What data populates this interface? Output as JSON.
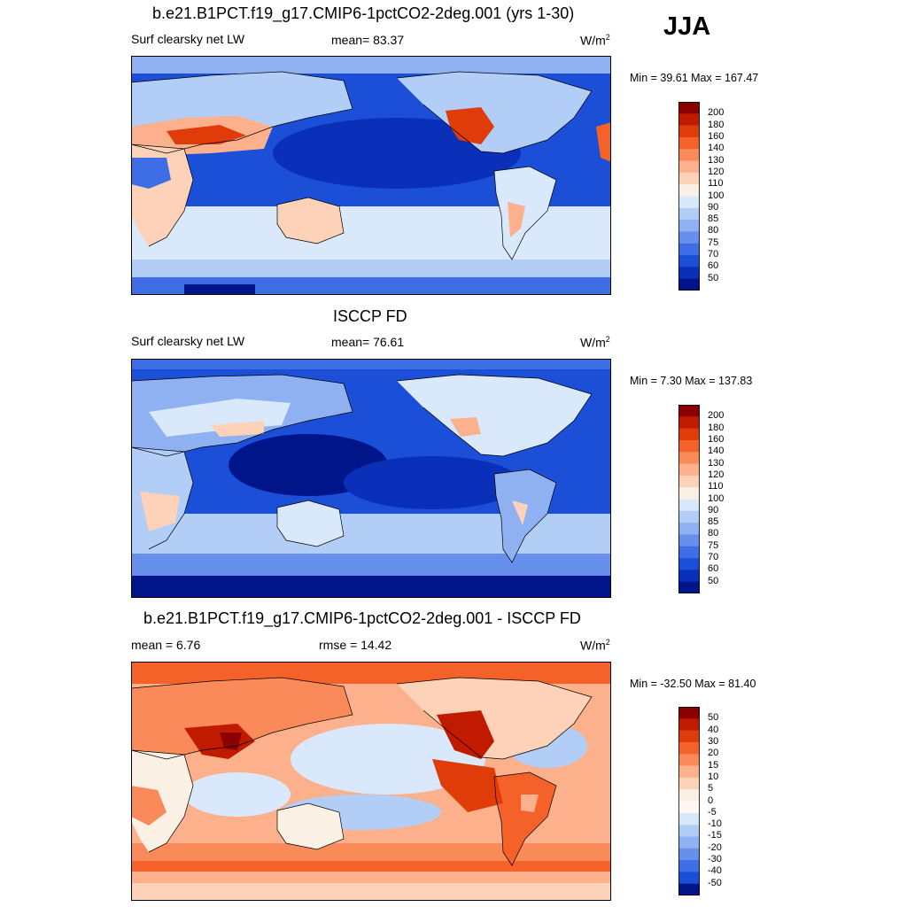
{
  "season": "JJA",
  "panels": [
    {
      "title": "b.e21.B1PCT.f19_g17.CMIP6-1pctCO2-2deg.001 (yrs 1-30)",
      "left_label": "Surf clearsky net LW",
      "center_label": "mean=  83.37",
      "units_base": "W/m",
      "units_exp": "2",
      "minmax": "Min =  39.61 Max = 167.47",
      "palette": "abs",
      "levels": [
        "200",
        "180",
        "160",
        "140",
        "130",
        "120",
        "110",
        "100",
        "90",
        "85",
        "80",
        "75",
        "70",
        "60",
        "50"
      ]
    },
    {
      "title": "ISCCP FD",
      "left_label": "Surf clearsky net LW",
      "center_label": "mean=  76.61",
      "units_base": "W/m",
      "units_exp": "2",
      "minmax": "Min =   7.30 Max = 137.83",
      "palette": "abs",
      "levels": [
        "200",
        "180",
        "160",
        "140",
        "130",
        "120",
        "110",
        "100",
        "90",
        "85",
        "80",
        "75",
        "70",
        "60",
        "50"
      ]
    },
    {
      "title": "b.e21.B1PCT.f19_g17.CMIP6-1pctCO2-2deg.001 - ISCCP FD",
      "left_label": "mean =   6.76",
      "center_label": "rmse =  14.42",
      "units_base": "W/m",
      "units_exp": "2",
      "minmax": "Min = -32.50 Max =  81.40",
      "palette": "diff",
      "levels": [
        "50",
        "40",
        "30",
        "20",
        "15",
        "10",
        "5",
        "0",
        "-5",
        "-10",
        "-15",
        "-20",
        "-30",
        "-40",
        "-50"
      ]
    }
  ],
  "colors": {
    "abs": [
      "#8b0000",
      "#c01a00",
      "#e03c0a",
      "#f4622a",
      "#fa8a5a",
      "#fdb08c",
      "#fdd2b8",
      "#fbf0e4",
      "#d9e8fb",
      "#b2cdf6",
      "#8fb1f2",
      "#6690ec",
      "#3d6ee6",
      "#1c4fd8",
      "#0a2fb8",
      "#00158a"
    ],
    "diff": [
      "#8b0000",
      "#c01a00",
      "#e03c0a",
      "#f4622a",
      "#fa8a5a",
      "#fdb08c",
      "#fdd2b8",
      "#fbf0e4",
      "#fff7f0",
      "#d9e8fb",
      "#b2cdf6",
      "#8fb1f2",
      "#6690ec",
      "#3d6ee6",
      "#1c4fd8",
      "#00158a"
    ]
  },
  "chart_data": [
    {
      "type": "heatmap",
      "title": "b.e21.B1PCT.f19_g17.CMIP6-1pctCO2-2deg.001 (yrs 1-30)",
      "variable": "Surf clearsky net LW",
      "season": "JJA",
      "mean": 83.37,
      "min": 39.61,
      "max": 167.47,
      "units": "W/m2",
      "colorbar_levels": [
        50,
        60,
        70,
        75,
        80,
        85,
        90,
        100,
        110,
        120,
        130,
        140,
        160,
        180,
        200
      ]
    },
    {
      "type": "heatmap",
      "title": "ISCCP FD",
      "variable": "Surf clearsky net LW",
      "season": "JJA",
      "mean": 76.61,
      "min": 7.3,
      "max": 137.83,
      "units": "W/m2",
      "colorbar_levels": [
        50,
        60,
        70,
        75,
        80,
        85,
        90,
        100,
        110,
        120,
        130,
        140,
        160,
        180,
        200
      ]
    },
    {
      "type": "heatmap",
      "title": "b.e21.B1PCT.f19_g17.CMIP6-1pctCO2-2deg.001 - ISCCP FD",
      "season": "JJA",
      "mean": 6.76,
      "rmse": 14.42,
      "min": -32.5,
      "max": 81.4,
      "units": "W/m2",
      "colorbar_levels": [
        -50,
        -40,
        -30,
        -20,
        -15,
        -10,
        -5,
        0,
        5,
        10,
        15,
        20,
        30,
        40,
        50
      ]
    }
  ]
}
